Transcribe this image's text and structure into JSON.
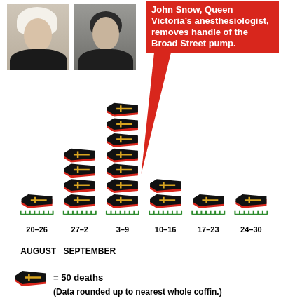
{
  "chart_data": {
    "type": "pictograph",
    "categories": [
      "20–26",
      "27–2",
      "3–9",
      "10–16",
      "17–23",
      "24–30"
    ],
    "values": [
      50,
      200,
      350,
      100,
      50,
      50
    ],
    "color": "#111111",
    "groups": [
      {
        "label": "AUGUST",
        "from": "20–26"
      },
      {
        "label": "SEPTEMBER",
        "from": "27–2"
      }
    ],
    "annotation": {
      "text": "John Snow, Queen Victoria’s anesthesiologist, removes handle of the Broad Street pump.",
      "after": "3–9"
    },
    "key": {
      "value": 50,
      "label": "= 50 deaths",
      "note": "(Data rounded up to nearest whole coffin.)"
    },
    "tick_labels": "x",
    "grid": false
  }
}
